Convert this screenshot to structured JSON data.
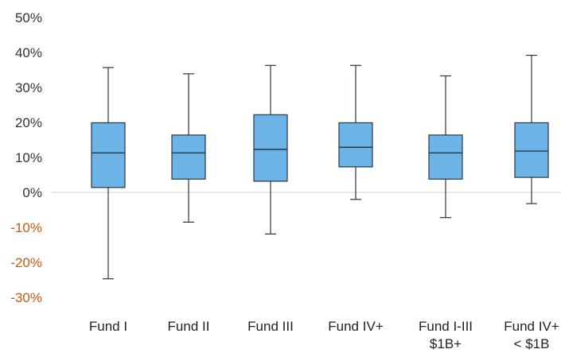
{
  "chart_data": {
    "type": "box",
    "title": "",
    "xlabel": "",
    "ylabel": "",
    "ylim": [
      -0.3,
      0.5
    ],
    "y_ticks": [
      {
        "value": 0.5,
        "label": "50%"
      },
      {
        "value": 0.4,
        "label": "40%"
      },
      {
        "value": 0.3,
        "label": "30%"
      },
      {
        "value": 0.2,
        "label": "20%"
      },
      {
        "value": 0.1,
        "label": "10%"
      },
      {
        "value": 0.0,
        "label": "0%"
      },
      {
        "value": -0.1,
        "label": "-10%"
      },
      {
        "value": -0.2,
        "label": "-20%"
      },
      {
        "value": -0.3,
        "label": "-30%"
      }
    ],
    "categories": [
      {
        "lines": [
          "Fund I"
        ]
      },
      {
        "lines": [
          "Fund II"
        ]
      },
      {
        "lines": [
          "Fund III"
        ]
      },
      {
        "lines": [
          "Fund IV+"
        ]
      },
      {
        "lines": [
          "Fund I-III",
          "$1B+"
        ]
      },
      {
        "lines": [
          "Fund IV+",
          "< $1B"
        ]
      }
    ],
    "boxes": [
      {
        "min": -0.247,
        "q1": 0.014,
        "median": 0.113,
        "q3": 0.199,
        "max": 0.357
      },
      {
        "min": -0.085,
        "q1": 0.038,
        "median": 0.113,
        "q3": 0.164,
        "max": 0.339
      },
      {
        "min": -0.119,
        "q1": 0.032,
        "median": 0.123,
        "q3": 0.222,
        "max": 0.363
      },
      {
        "min": -0.02,
        "q1": 0.073,
        "median": 0.129,
        "q3": 0.199,
        "max": 0.363
      },
      {
        "min": -0.072,
        "q1": 0.038,
        "median": 0.113,
        "q3": 0.164,
        "max": 0.333
      },
      {
        "min": -0.032,
        "q1": 0.043,
        "median": 0.118,
        "q3": 0.199,
        "max": 0.392
      }
    ],
    "grid": false,
    "zero_line": true,
    "colors": {
      "box_fill": "#6CB4E8",
      "box_stroke": "#2A3644",
      "whisker": "#2A3644",
      "zero_line": "#D9D9D9",
      "positive_tick": "#333333",
      "negative_tick": "#C55A11"
    }
  }
}
